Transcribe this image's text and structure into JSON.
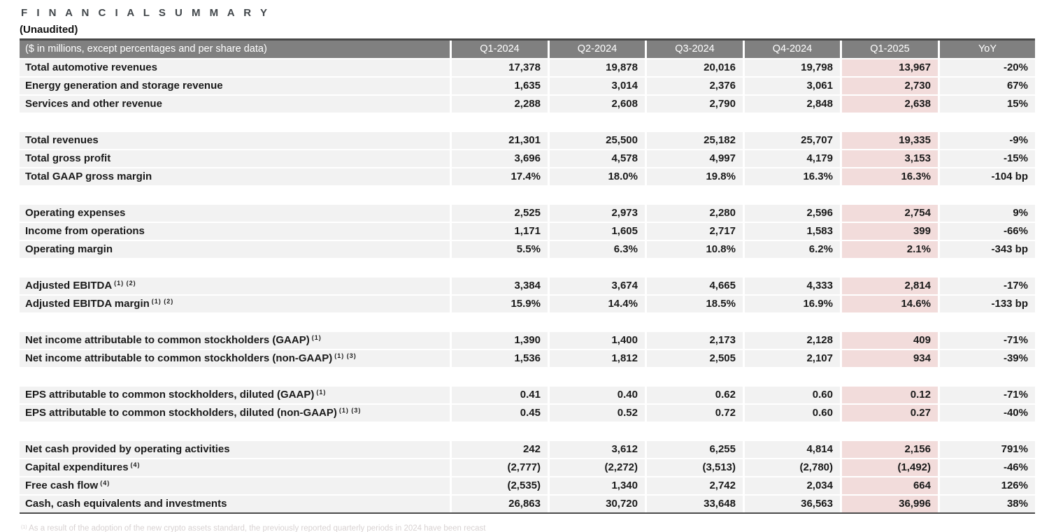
{
  "page": {
    "title": "F I N A N C I A L   S U M M A R Y",
    "subtitle": "(Unaudited)",
    "footnote_sup": "(1)",
    "footnote_text": "As a result of the adoption of the new crypto assets standard, the previously reported quarterly periods in 2024 have been recast"
  },
  "colors": {
    "header_bg": "#808080",
    "header_text": "#ffffff",
    "row_bg": "#f2f2f2",
    "highlight_bg": "#f2dcdb",
    "border_dark": "#4a4a4a",
    "title_color": "#41464a",
    "footnote_color": "#d8d2d2"
  },
  "table": {
    "label_header": "($ in millions, except percentages and per share data)",
    "columns": [
      "Q1-2024",
      "Q2-2024",
      "Q3-2024",
      "Q4-2024",
      "Q1-2025",
      "YoY"
    ],
    "highlight_column": "Q1-2025",
    "highlight_column_index": 4,
    "rows": [
      {
        "label": "Total automotive revenues",
        "sup": "",
        "values": [
          "17,378",
          "19,878",
          "20,016",
          "19,798",
          "13,967",
          "-20%"
        ]
      },
      {
        "label": "Energy generation and storage revenue",
        "sup": "",
        "values": [
          "1,635",
          "3,014",
          "2,376",
          "3,061",
          "2,730",
          "67%"
        ]
      },
      {
        "label": "Services and other revenue",
        "sup": "",
        "values": [
          "2,288",
          "2,608",
          "2,790",
          "2,848",
          "2,638",
          "15%"
        ]
      },
      {
        "type": "spacer"
      },
      {
        "label": "Total revenues",
        "sup": "",
        "values": [
          "21,301",
          "25,500",
          "25,182",
          "25,707",
          "19,335",
          "-9%"
        ]
      },
      {
        "label": "Total gross profit",
        "sup": "",
        "values": [
          "3,696",
          "4,578",
          "4,997",
          "4,179",
          "3,153",
          "-15%"
        ]
      },
      {
        "label": "Total GAAP gross margin",
        "sup": "",
        "values": [
          "17.4%",
          "18.0%",
          "19.8%",
          "16.3%",
          "16.3%",
          "-104 bp"
        ]
      },
      {
        "type": "spacer"
      },
      {
        "label": "Operating expenses",
        "sup": "",
        "values": [
          "2,525",
          "2,973",
          "2,280",
          "2,596",
          "2,754",
          "9%"
        ]
      },
      {
        "label": "Income from operations",
        "sup": "",
        "values": [
          "1,171",
          "1,605",
          "2,717",
          "1,583",
          "399",
          "-66%"
        ]
      },
      {
        "label": "Operating margin",
        "sup": "",
        "values": [
          "5.5%",
          "6.3%",
          "10.8%",
          "6.2%",
          "2.1%",
          "-343 bp"
        ]
      },
      {
        "type": "spacer"
      },
      {
        "label": "Adjusted EBITDA",
        "sup": "(1) (2)",
        "values": [
          "3,384",
          "3,674",
          "4,665",
          "4,333",
          "2,814",
          "-17%"
        ]
      },
      {
        "label": "Adjusted EBITDA margin",
        "sup": "(1) (2)",
        "values": [
          "15.9%",
          "14.4%",
          "18.5%",
          "16.9%",
          "14.6%",
          "-133 bp"
        ]
      },
      {
        "type": "spacer"
      },
      {
        "label": "Net income attributable to common stockholders (GAAP)",
        "sup": "(1)",
        "values": [
          "1,390",
          "1,400",
          "2,173",
          "2,128",
          "409",
          "-71%"
        ]
      },
      {
        "label": "Net income attributable to common stockholders (non-GAAP)",
        "sup": "(1) (3)",
        "values": [
          "1,536",
          "1,812",
          "2,505",
          "2,107",
          "934",
          "-39%"
        ]
      },
      {
        "type": "spacer"
      },
      {
        "label": "EPS attributable to common stockholders, diluted (GAAP)",
        "sup": "(1)",
        "values": [
          "0.41",
          "0.40",
          "0.62",
          "0.60",
          "0.12",
          "-71%"
        ]
      },
      {
        "label": "EPS attributable to common stockholders, diluted (non-GAAP)",
        "sup": "(1) (3)",
        "values": [
          "0.45",
          "0.52",
          "0.72",
          "0.60",
          "0.27",
          "-40%"
        ]
      },
      {
        "type": "spacer"
      },
      {
        "label": "Net cash provided by operating activities",
        "sup": "",
        "values": [
          "242",
          "3,612",
          "6,255",
          "4,814",
          "2,156",
          "791%"
        ]
      },
      {
        "label": "Capital expenditures",
        "sup": "(4)",
        "values": [
          "(2,777)",
          "(2,272)",
          "(3,513)",
          "(2,780)",
          "(1,492)",
          "-46%"
        ]
      },
      {
        "label": "Free cash flow",
        "sup": "(4)",
        "values": [
          "(2,535)",
          "1,340",
          "2,742",
          "2,034",
          "664",
          "126%"
        ]
      },
      {
        "label": "Cash, cash equivalents and investments",
        "sup": "",
        "values": [
          "26,863",
          "30,720",
          "33,648",
          "36,563",
          "36,996",
          "38%"
        ]
      }
    ]
  }
}
